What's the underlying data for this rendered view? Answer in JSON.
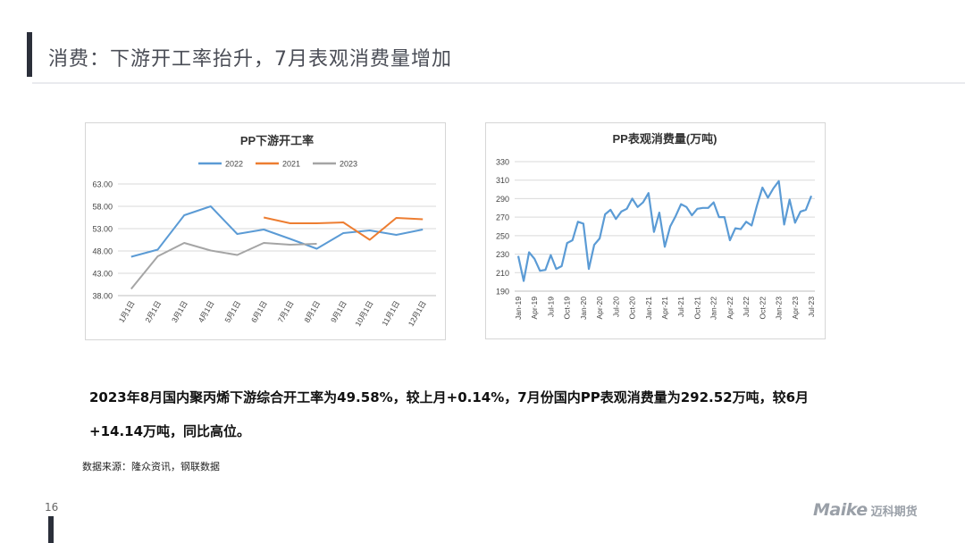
{
  "header": {
    "title": "消费：下游开工率抬升，7月表观消费量增加"
  },
  "chart_data": [
    {
      "type": "line",
      "title": "PP下游开工率",
      "categories": [
        "1月1日",
        "2月1日",
        "3月1日",
        "4月1日",
        "5月1日",
        "6月1日",
        "7月1日",
        "8月1日",
        "9月1日",
        "10月1日",
        "11月1日",
        "12月1日"
      ],
      "series": [
        {
          "name": "2022",
          "color": "#5b9bd5",
          "values": [
            46.7,
            48.3,
            56.0,
            58.0,
            51.8,
            52.8,
            50.7,
            48.5,
            52.0,
            52.6,
            51.6,
            52.8
          ]
        },
        {
          "name": "2021",
          "color": "#ed7d31",
          "values": [
            null,
            null,
            null,
            null,
            null,
            55.5,
            54.2,
            54.2,
            54.4,
            50.5,
            55.4,
            55.1
          ]
        },
        {
          "name": "2023",
          "color": "#a5a5a5",
          "values": [
            39.5,
            46.8,
            49.8,
            48.1,
            47.1,
            49.8,
            49.4,
            49.6,
            null,
            null,
            null,
            null
          ]
        }
      ],
      "ylim": [
        38,
        63
      ],
      "yticks": [
        "38.00",
        "43.00",
        "48.00",
        "53.00",
        "58.00",
        "63.00"
      ],
      "legend": "top",
      "grid": true
    },
    {
      "type": "line",
      "title": "PP表观消费量(万吨)",
      "x_tick_labels": [
        "Jan-19",
        "Apr-19",
        "Jul-19",
        "Oct-19",
        "Jan-20",
        "Apr-20",
        "Jul-20",
        "Oct-20",
        "Jan-21",
        "Apr-21",
        "Jul-21",
        "Oct-21",
        "Jan-22",
        "Apr-22",
        "Jul-22",
        "Oct-22",
        "Jan-23",
        "Apr-23",
        "Jul-23"
      ],
      "series": [
        {
          "name": "",
          "color": "#5b9bd5",
          "values": [
            228,
            201,
            232,
            225,
            212,
            213,
            229,
            214,
            217,
            242,
            245,
            265,
            263,
            214,
            240,
            247,
            273,
            278,
            268,
            276,
            279,
            290,
            281,
            286,
            296,
            254,
            275,
            238,
            260,
            271,
            284,
            281,
            272,
            279,
            280,
            280,
            286,
            270,
            270,
            245,
            258,
            257,
            265,
            261,
            283,
            302,
            291,
            301,
            309,
            262,
            289,
            264,
            276,
            278,
            293
          ]
        }
      ],
      "ylim": [
        190,
        330
      ],
      "yticks": [
        "190",
        "210",
        "230",
        "250",
        "270",
        "290",
        "310",
        "330"
      ],
      "grid": true
    }
  ],
  "summary": {
    "line1": "2023年8月国内聚丙烯下游综合开工率为49.58%，较上月+0.14%，7月份国内PP表观消费量为292.52万吨，较6月",
    "line2": "+14.14万吨，同比高位。"
  },
  "source": "数据来源：隆众资讯，钢联数据",
  "page_number": "16",
  "logo": {
    "en": "Maike",
    "cn": "迈科期货"
  },
  "colors": {
    "grid": "#d9d9d9",
    "axis": "#bfbfbf",
    "title_bar": "#2b2f3a"
  }
}
